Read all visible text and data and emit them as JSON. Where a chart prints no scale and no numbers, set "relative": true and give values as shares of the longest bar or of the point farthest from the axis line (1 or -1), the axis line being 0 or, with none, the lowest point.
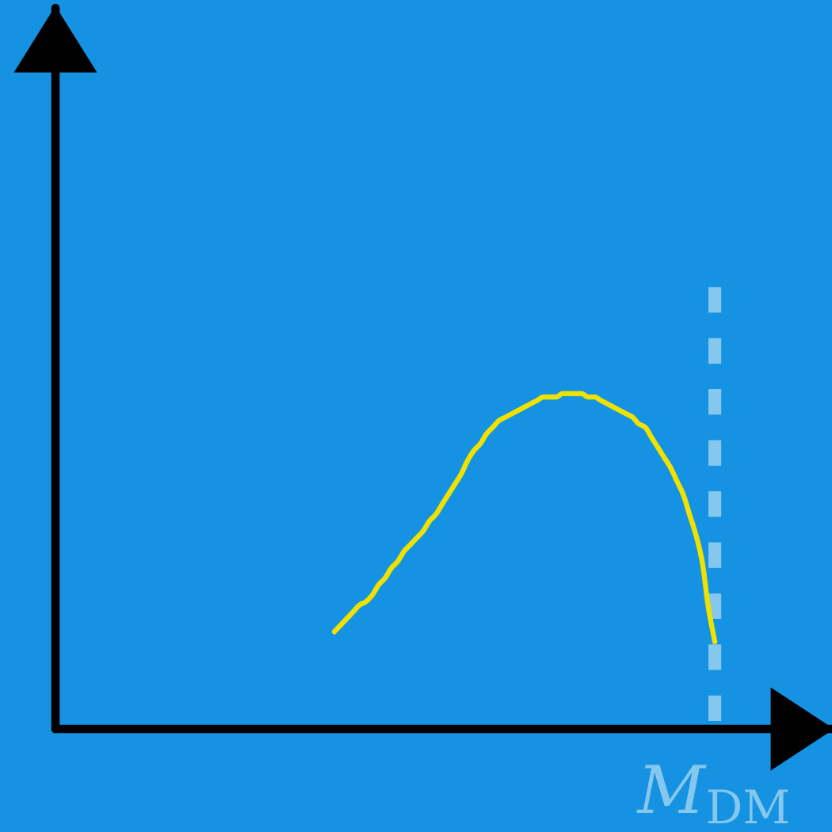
{
  "chart_data": {
    "type": "line",
    "relative": true,
    "categories": [
      null,
      null,
      null,
      null,
      null,
      null,
      null,
      null,
      null,
      null,
      null,
      null,
      null,
      null,
      null,
      null,
      null,
      null,
      null,
      null,
      null,
      null,
      null,
      null,
      null,
      null,
      null,
      null,
      null,
      null,
      null,
      null,
      null,
      null,
      null,
      null,
      null,
      null,
      null,
      null,
      null,
      null,
      null,
      null,
      null,
      null,
      null,
      null,
      null,
      null,
      null,
      null,
      null,
      null,
      null,
      null,
      null,
      null,
      null,
      null,
      null
    ],
    "series": [
      {
        "color": "#efe100",
        "values": [
          0.29,
          0.31,
          0.33,
          0.35,
          0.37,
          0.38,
          0.4,
          0.43,
          0.45,
          0.48,
          0.5,
          0.53,
          0.55,
          0.57,
          0.59,
          0.62,
          0.64,
          0.67,
          0.7,
          0.73,
          0.76,
          0.8,
          0.83,
          0.85,
          0.88,
          0.9,
          0.92,
          0.93,
          0.94,
          0.95,
          0.96,
          0.97,
          0.98,
          0.99,
          0.99,
          0.99,
          1.0,
          1,
          1.0,
          1.0,
          0.99,
          0.99,
          0.98,
          0.97,
          0.96,
          0.95,
          0.94,
          0.93,
          0.91,
          0.9,
          0.87,
          0.84,
          0.81,
          0.78,
          0.74,
          0.7,
          0.64,
          0.58,
          0.5,
          0.36,
          0.26
        ]
      }
    ],
    "annotations": [
      "M$_{DM}$"
    ]
  }
}
